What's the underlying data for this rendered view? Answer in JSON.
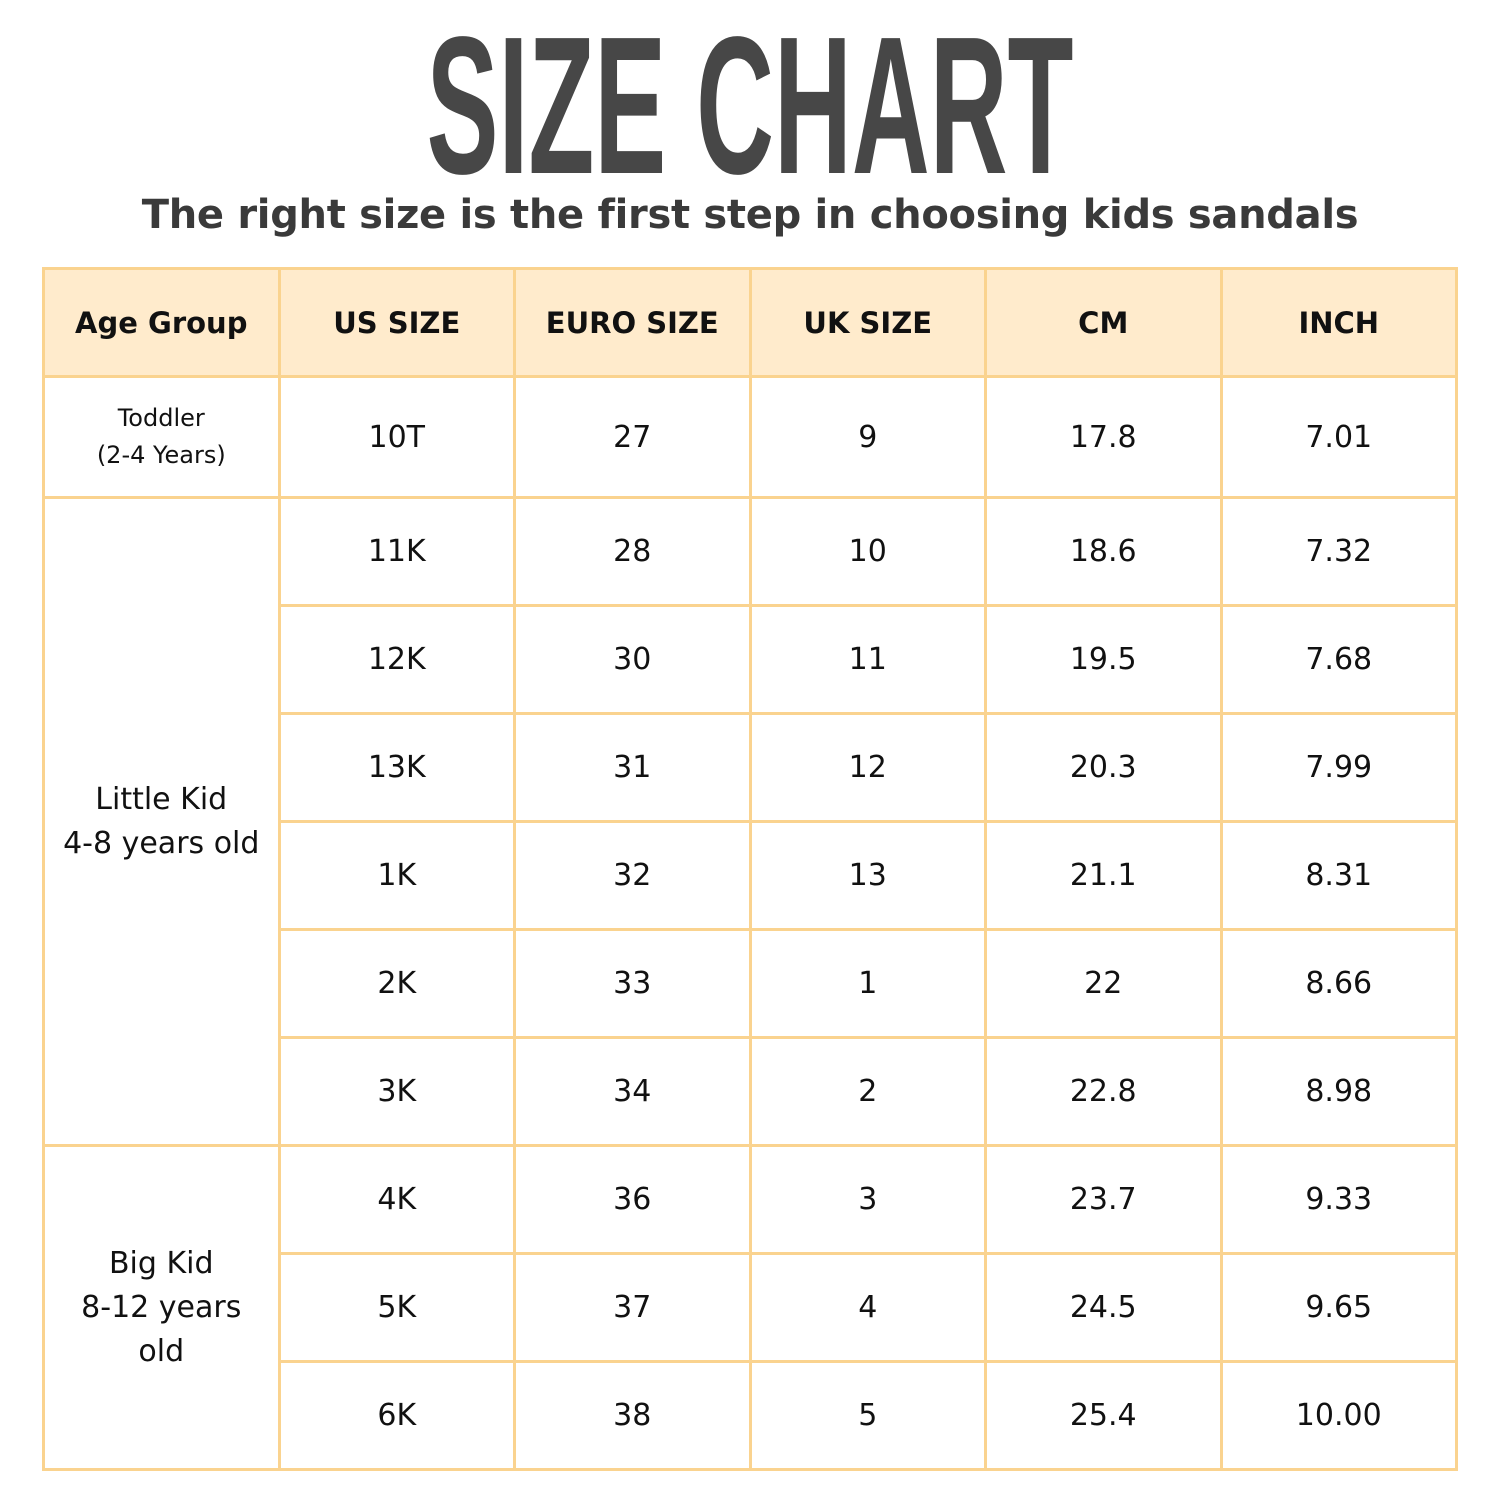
{
  "title": "SIZE CHART",
  "subtitle": "The right size is the first step in choosing kids sandals",
  "colors": {
    "title": "#474747",
    "header_bg": "#FFEBCC",
    "border": "#FAD38F"
  },
  "table": {
    "headers": [
      "Age Group",
      "US SIZE",
      "EURO SIZE",
      "UK SIZE",
      "CM",
      "INCH"
    ],
    "groups": [
      {
        "label_lines": [
          "Toddler",
          "(2-4 Years)"
        ],
        "rows": [
          [
            "10T",
            "27",
            "9",
            "17.8",
            "7.01"
          ]
        ]
      },
      {
        "label_lines": [
          "Little Kid",
          "4-8 years old"
        ],
        "rows": [
          [
            "11K",
            "28",
            "10",
            "18.6",
            "7.32"
          ],
          [
            "12K",
            "30",
            "11",
            "19.5",
            "7.68"
          ],
          [
            "13K",
            "31",
            "12",
            "20.3",
            "7.99"
          ],
          [
            "1K",
            "32",
            "13",
            "21.1",
            "8.31"
          ],
          [
            "2K",
            "33",
            "1",
            "22",
            "8.66"
          ],
          [
            "3K",
            "34",
            "2",
            "22.8",
            "8.98"
          ]
        ]
      },
      {
        "label_lines": [
          "Big Kid",
          "8-12 years",
          "old"
        ],
        "rows": [
          [
            "4K",
            "36",
            "3",
            "23.7",
            "9.33"
          ],
          [
            "5K",
            "37",
            "4",
            "24.5",
            "9.65"
          ],
          [
            "6K",
            "38",
            "5",
            "25.4",
            "10.00"
          ]
        ]
      }
    ]
  }
}
